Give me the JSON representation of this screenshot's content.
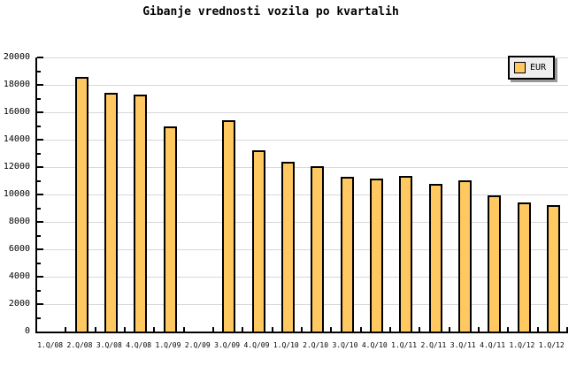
{
  "title": "Gibanje vrednosti vozila po kvartalih",
  "legend": {
    "label": "EUR"
  },
  "colors": {
    "background": "#ffffff",
    "bar_fill": "#ffc860",
    "bar_border": "#000000",
    "gridline": "#d8d8d8",
    "axis": "#000000",
    "legend_background": "#eeeeee",
    "legend_shadow": "#999999",
    "text": "#000000"
  },
  "chart_data": {
    "type": "bar",
    "title": "Gibanje vrednosti vozila po kvartalih",
    "categories": [
      "1.Q/08",
      "2.Q/08",
      "3.Q/08",
      "4.Q/08",
      "1.Q/09",
      "2.Q/09",
      "3.Q/09",
      "4.Q/09",
      "1.Q/10",
      "2.Q/10",
      "3.Q/10",
      "4.Q/10",
      "1.Q/11",
      "2.Q/11",
      "3.Q/11",
      "4.Q/11",
      "1.Q/12",
      "1.Q/12"
    ],
    "series": [
      {
        "name": "EUR",
        "color": "#ffc860",
        "values": [
          null,
          18600,
          17450,
          17300,
          15000,
          null,
          15450,
          13250,
          12400,
          12050,
          11300,
          11150,
          11350,
          10800,
          11050,
          9950,
          9400,
          9200
        ]
      }
    ],
    "xlabel": "",
    "ylabel": "",
    "ylim": [
      0,
      20000
    ],
    "y_major_step": 2000,
    "y_minor_step": 1000,
    "y_tick_labels": [
      "0",
      "2000",
      "4000",
      "6000",
      "8000",
      "10000",
      "12000",
      "14000",
      "16000",
      "18000",
      "20000"
    ],
    "grid": "horizontal major gridlines only",
    "legend_position": "top-right"
  }
}
